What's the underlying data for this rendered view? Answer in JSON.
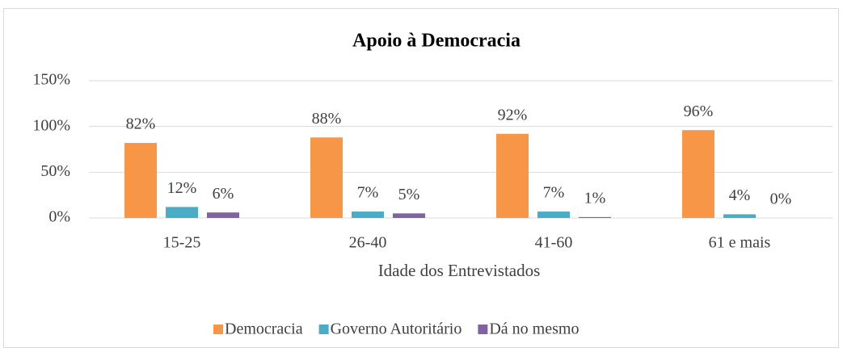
{
  "chart_data": {
    "type": "bar",
    "title": "Apoio à Democracia",
    "x_label": "Idade dos Entrevistados",
    "categories": [
      "15-25",
      "26-40",
      "41-60",
      "61 e mais"
    ],
    "series": [
      {
        "name": "Democracia",
        "color": "#f79646",
        "values": [
          82,
          88,
          92,
          96
        ],
        "value_labels": [
          "82%",
          "88%",
          "92%",
          "96%"
        ]
      },
      {
        "name": "Governo Autoritário",
        "color": "#4bacc6",
        "values": [
          12,
          7,
          7,
          4
        ],
        "value_labels": [
          "12%",
          "7%",
          "7%",
          "4%"
        ]
      },
      {
        "name": "Dá no mesmo",
        "color": "#8064a2",
        "values": [
          6,
          5,
          1,
          0
        ],
        "value_labels": [
          "6%",
          "5%",
          "1%",
          "0%"
        ]
      }
    ],
    "ylim": [
      0,
      150
    ],
    "yticks": [
      {
        "value": 0,
        "label": "0%"
      },
      {
        "value": 50,
        "label": "50%"
      },
      {
        "value": 100,
        "label": "100%"
      },
      {
        "value": 150,
        "label": "150%"
      }
    ],
    "grid": true,
    "legend": "bottom"
  }
}
